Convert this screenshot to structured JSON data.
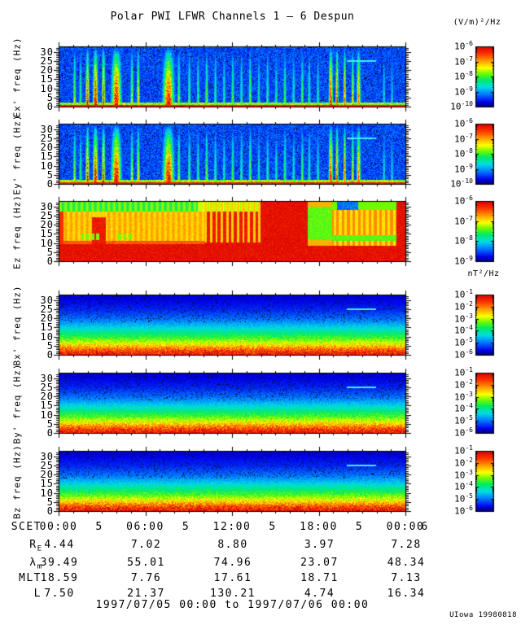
{
  "credit": "UIowa 19980818",
  "chart_data": {
    "type": "heatmap",
    "title": "Polar PWI LFWR Channels 1 — 6 Despun",
    "date_range": "1997/07/05 00:00 to 1997/07/06 00:00",
    "units": {
      "electric": "(V/m)²/Hz",
      "magnetic": "nT²/Hz"
    },
    "freq_ticks": [
      0,
      5,
      10,
      15,
      20,
      25,
      30
    ],
    "freq_range": [
      0,
      33
    ],
    "time_axis": {
      "label": "SCET",
      "ticks": [
        {
          "time": "00:00",
          "day": "5"
        },
        {
          "time": "06:00",
          "day": "5"
        },
        {
          "time": "12:00",
          "day": "5"
        },
        {
          "time": "18:00",
          "day": "5"
        },
        {
          "time": "00:00",
          "day": "6"
        }
      ]
    },
    "panels": [
      {
        "id": "Ex",
        "ylabel": "Ex' freq (Hz)",
        "unit": "(V/m)²/Hz",
        "style": "bursts",
        "interference": true,
        "colorbar_exponents": [
          -6,
          -7,
          -8,
          -9,
          -10
        ],
        "description": "Broadband electric wave bursts (green-red vertical stripes) on blue background; intense red band near 0 Hz"
      },
      {
        "id": "Ey",
        "ylabel": "Ey' freq (Hz)",
        "unit": "(V/m)²/Hz",
        "style": "bursts",
        "interference": true,
        "colorbar_exponents": [
          -6,
          -7,
          -8,
          -9,
          -10
        ],
        "description": "Burst pattern nearly identical to Ex'"
      },
      {
        "id": "Ez",
        "ylabel": "Ez freq (Hz)",
        "unit": "(V/m)²/Hz",
        "style": "saturated",
        "interference": false,
        "colorbar_exponents": [
          -6,
          -7,
          -8,
          -9
        ],
        "description": "Saturated red panel; yellow/orange striping and green patches above ~10 Hz on left and right thirds, green/blue cap near 30 Hz"
      },
      {
        "id": "Bx",
        "ylabel": "Bx' freq (Hz)",
        "unit": "nT²/Hz",
        "style": "gradient",
        "interference": true,
        "colorbar_exponents": [
          -1,
          -2,
          -3,
          -4,
          -5,
          -6
        ],
        "description": "Smooth spectral falloff: red at lowest frequencies grading through yellow/green/cyan to dark blue above ~20 Hz"
      },
      {
        "id": "By",
        "ylabel": "By' freq (Hz)",
        "unit": "nT²/Hz",
        "style": "gradient",
        "interference": true,
        "colorbar_exponents": [
          -1,
          -2,
          -3,
          -4,
          -5,
          -6
        ],
        "description": "Same smooth falloff as Bx'"
      },
      {
        "id": "Bz",
        "ylabel": "Bz freq (Hz)",
        "unit": "nT²/Hz",
        "style": "gradient",
        "interference": true,
        "colorbar_exponents": [
          -1,
          -2,
          -3,
          -4,
          -5,
          -6
        ],
        "description": "Same smooth falloff as Bx'"
      }
    ],
    "bursts": [
      [
        0.045,
        0.6
      ],
      [
        0.062,
        0.5
      ],
      [
        0.082,
        0.95,
        0.005
      ],
      [
        0.105,
        1.0,
        0.007
      ],
      [
        0.128,
        0.95,
        0.005
      ],
      [
        0.165,
        1.0,
        0.014
      ],
      [
        0.21,
        0.65
      ],
      [
        0.228,
        0.75
      ],
      [
        0.315,
        0.98,
        0.016
      ],
      [
        0.345,
        0.6
      ],
      [
        0.375,
        0.55
      ],
      [
        0.4,
        0.5
      ],
      [
        0.425,
        0.6
      ],
      [
        0.45,
        0.5
      ],
      [
        0.475,
        0.45
      ],
      [
        0.5,
        0.55
      ],
      [
        0.525,
        0.5
      ],
      [
        0.55,
        0.6
      ],
      [
        0.575,
        0.45
      ],
      [
        0.6,
        0.5
      ],
      [
        0.625,
        0.45
      ],
      [
        0.65,
        0.55
      ],
      [
        0.675,
        0.45
      ],
      [
        0.7,
        0.55
      ],
      [
        0.72,
        0.5
      ],
      [
        0.745,
        0.45
      ],
      [
        0.782,
        1.0,
        0.006
      ],
      [
        0.8,
        0.95,
        0.004
      ],
      [
        0.822,
        0.9,
        0.004
      ],
      [
        0.845,
        0.75,
        0.004
      ],
      [
        0.862,
        0.85,
        0.006
      ],
      [
        0.935,
        0.4
      ],
      [
        0.958,
        0.38
      ]
    ],
    "b_profile": [
      [
        0,
        0.97
      ],
      [
        2,
        0.9
      ],
      [
        4,
        0.78
      ],
      [
        6,
        0.66
      ],
      [
        9,
        0.52
      ],
      [
        12,
        0.43
      ],
      [
        16,
        0.3
      ],
      [
        20,
        0.2
      ],
      [
        25,
        0.12
      ],
      [
        33,
        0.06
      ]
    ],
    "interference_line": {
      "freq": 25.5,
      "t_start": 0.83,
      "t_end": 0.915
    },
    "ephemeris_rows": [
      {
        "label": "R",
        "sub": "E",
        "values": [
          "4.44",
          "7.02",
          "8.80",
          "3.97",
          "7.28"
        ]
      },
      {
        "label": "λ",
        "sub": "m",
        "values": [
          "39.49",
          "55.01",
          "74.96",
          "23.07",
          "48.34"
        ]
      },
      {
        "label": "MLT",
        "sub": "",
        "values": [
          "18.59",
          "7.76",
          "17.61",
          "18.71",
          "7.13"
        ]
      },
      {
        "label": "L",
        "sub": "",
        "values": [
          "7.50",
          "21.37",
          "130.21",
          "4.74",
          "16.34"
        ]
      }
    ]
  }
}
